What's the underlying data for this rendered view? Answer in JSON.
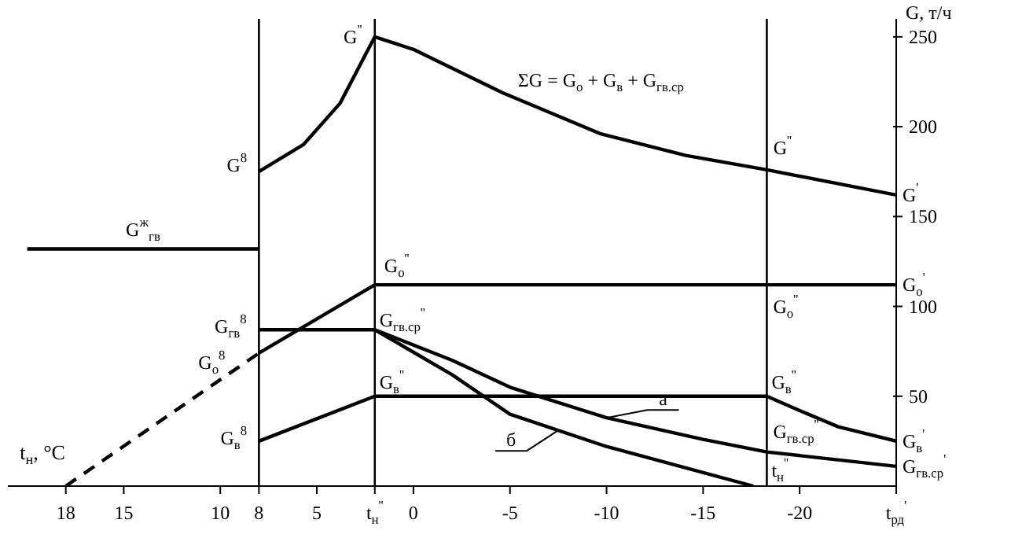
{
  "chart_data": {
    "type": "line",
    "xlabel": "t$_{н}$, °C",
    "ylabel": "G, т/ч",
    "xlim": [
      21,
      -25
    ],
    "ylim": [
      0,
      260
    ],
    "xticks": [
      18,
      15,
      10,
      8,
      5,
      {
        "value": 2,
        "label": "t$_{н}$$^{''}$"
      },
      0,
      -5,
      -10,
      -15,
      -20,
      {
        "value": -25,
        "label": "t$_{рд}$$^{'}$"
      }
    ],
    "yticks": [
      50,
      100,
      150,
      200,
      250
    ],
    "marker": "none",
    "line_style": "solid",
    "series": [
      {
        "color": "#000000",
        "x": [
          8,
          5.7,
          3.8,
          2,
          0,
          -4.6,
          -9.7,
          -14.1,
          -18.3,
          -25
        ],
        "values": [
          175,
          190,
          213,
          250,
          243,
          219,
          196,
          184,
          176,
          162
        ]
      },
      {
        "color": "#000000",
        "x": [
          20,
          8
        ],
        "values": [
          132,
          132
        ]
      },
      {
        "color": "#000000",
        "line_style": "dashed",
        "x": [
          18,
          8
        ],
        "values": [
          0,
          74
        ]
      },
      {
        "color": "#000000",
        "x": [
          8,
          2,
          -25
        ],
        "values": [
          74,
          112,
          112
        ]
      },
      {
        "color": "#000000",
        "x": [
          8,
          2,
          -2,
          -5,
          -10,
          -15,
          -18.3,
          -25
        ],
        "values": [
          87,
          87,
          70,
          55,
          38,
          26,
          19,
          11
        ]
      },
      {
        "color": "#000000",
        "x": [
          2,
          -2,
          -5,
          -10,
          -17.6
        ],
        "values": [
          87,
          62,
          40,
          22,
          0
        ]
      },
      {
        "color": "#000000",
        "x": [
          8,
          2,
          -18.3,
          -20,
          -22,
          -25
        ],
        "values": [
          25,
          50,
          50,
          42,
          33,
          25
        ]
      }
    ],
    "ref_lines": [
      {
        "axis": "x",
        "value": 8
      },
      {
        "axis": "x",
        "value": 2
      },
      {
        "axis": "x",
        "value": -18.3
      }
    ],
    "annotations": [
      {
        "text": "G$^{8}$",
        "x": 8,
        "y": 175
      },
      {
        "text": "G$^{''}$",
        "x": 2,
        "y": 250
      },
      {
        "text": "ΣG = G$_{о}$ + G$_{в}$ + G$_{гв.ср}$",
        "x": -4.6,
        "y": 219
      },
      {
        "text": "G$^{''}$",
        "x": -18.3,
        "y": 176
      },
      {
        "text": "G$^{'}$",
        "x": -25,
        "y": 162
      },
      {
        "text": "G$^{ж}$$_{гв}$",
        "x": 14,
        "y": 132
      },
      {
        "text": "G$_{о}$$^{''}$",
        "x": 2,
        "y": 112
      },
      {
        "text": "G$_{о}$$^{''}$",
        "x": -18.3,
        "y": 112
      },
      {
        "text": "G$_{о}$$^{'}$",
        "x": -25,
        "y": 112
      },
      {
        "text": "G$_{гв}$$^{8}$",
        "x": 8,
        "y": 87
      },
      {
        "text": "G$_{о}$$^{8}$",
        "x": 8,
        "y": 74
      },
      {
        "text": "G$_{в}$$^{8}$",
        "x": 8,
        "y": 25
      },
      {
        "text": "G$_{гв.ср}$$^{''}$",
        "x": 2,
        "y": 87
      },
      {
        "text": "G$_{в}$$^{''}$",
        "x": 2,
        "y": 50
      },
      {
        "text": "G$_{в}$$^{''}$",
        "x": -18.3,
        "y": 50
      },
      {
        "text": "G$_{гв.ср}$$^{''}$",
        "x": -18.3,
        "y": 19
      },
      {
        "text": "t$_{н}$$^{''}$",
        "x": -18.3,
        "y": 0
      },
      {
        "text": "G$_{в}$$^{'}$",
        "x": -25,
        "y": 25
      },
      {
        "text": "G$_{гв.ср}$$^{'}$",
        "x": -25,
        "y": 11
      },
      {
        "text": "а",
        "x": -10,
        "y": 38
      },
      {
        "text": "б",
        "x": -7.5,
        "y": 31
      }
    ]
  }
}
